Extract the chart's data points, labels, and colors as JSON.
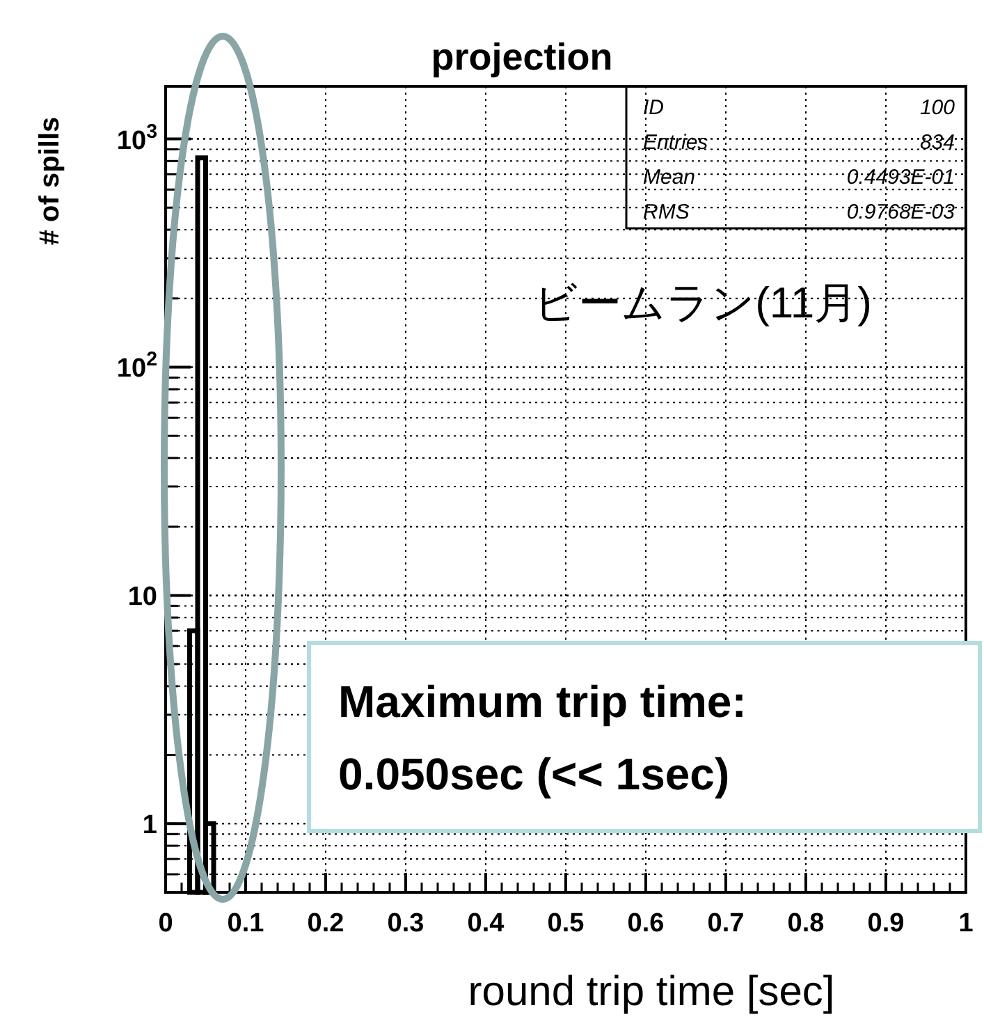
{
  "chart_data": {
    "type": "histogram",
    "title": "projection",
    "xlabel": "round trip time [sec]",
    "ylabel": "# of spills",
    "bins": [
      0.03,
      0.04,
      0.05,
      0.06
    ],
    "values": [
      7,
      826,
      1
    ],
    "color": "#000000",
    "xlim": [
      0,
      1
    ],
    "xticks": [
      0,
      0.1,
      0.2,
      0.3,
      0.4,
      0.5,
      0.6,
      0.7,
      0.8,
      0.9,
      1
    ],
    "ylim": [
      0.5,
      1700
    ],
    "log": true,
    "yticks": [
      1,
      10,
      {
        "value": 100,
        "label": "10$^{2}$"
      },
      {
        "value": 1000,
        "label": "10$^{3}$"
      }
    ],
    "grid": true,
    "annotations": [
      "ID",
      "100",
      "Entries",
      "834",
      "Mean",
      "0.4493E-01",
      "RMS",
      "0.9768E-03",
      "ビームラン(11月)",
      "Maximum trip time:\n0.050sec (<< 1sec)"
    ]
  }
}
